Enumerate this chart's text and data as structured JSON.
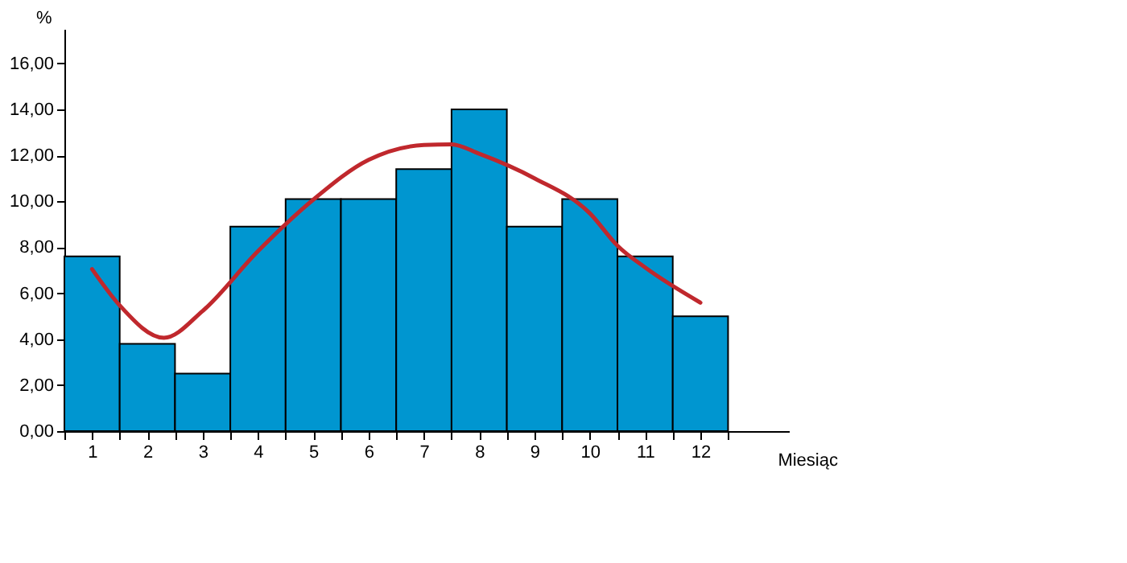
{
  "chart_data": {
    "type": "histogram",
    "xlabel": "Miesiąc",
    "ylabel": "%",
    "bins": [
      0.5,
      1.5,
      2.5,
      3.5,
      4.5,
      5.5,
      6.5,
      7.5,
      8.5,
      9.5,
      10.5,
      11.5,
      12.5
    ],
    "values": [
      7.6,
      3.8,
      2.5,
      8.9,
      10.1,
      10.1,
      11.4,
      14.0,
      8.9,
      10.1,
      7.6,
      5.0
    ],
    "color": "#0096d0",
    "series": [
      {
        "type": "line",
        "color": "#c0282d",
        "x": [
          1,
          1.5,
          2.3,
          3,
          4,
          5,
          6,
          7,
          7.5,
          8,
          9,
          10,
          10.5,
          11,
          12
        ],
        "values": [
          7.05,
          5.47,
          4.06,
          5.23,
          7.83,
          10.07,
          11.8,
          12.45,
          12.48,
          12.07,
          11.0,
          9.48,
          8.07,
          7.12,
          5.59
        ]
      }
    ],
    "xlim": [
      0.5,
      13.6
    ],
    "xticks": [
      {
        "value": 0.5,
        "label": null
      },
      {
        "value": 1,
        "label": "1"
      },
      {
        "value": 1.5,
        "label": null
      },
      {
        "value": 2,
        "label": "2"
      },
      {
        "value": 2.5,
        "label": null
      },
      {
        "value": 3,
        "label": "3"
      },
      {
        "value": 3.5,
        "label": null
      },
      {
        "value": 4,
        "label": "4"
      },
      {
        "value": 4.5,
        "label": null
      },
      {
        "value": 5,
        "label": "5"
      },
      {
        "value": 5.5,
        "label": null
      },
      {
        "value": 6,
        "label": "6"
      },
      {
        "value": 6.5,
        "label": null
      },
      {
        "value": 7,
        "label": "7"
      },
      {
        "value": 7.5,
        "label": null
      },
      {
        "value": 8,
        "label": "8"
      },
      {
        "value": 8.5,
        "label": null
      },
      {
        "value": 9,
        "label": "9"
      },
      {
        "value": 9.5,
        "label": null
      },
      {
        "value": 10,
        "label": "10"
      },
      {
        "value": 10.5,
        "label": null
      },
      {
        "value": 11,
        "label": "11"
      },
      {
        "value": 11.5,
        "label": null
      },
      {
        "value": 12,
        "label": "12"
      },
      {
        "value": 12.5,
        "label": null
      }
    ],
    "ylim": [
      0,
      17.5
    ],
    "yticks": [
      {
        "value": 0,
        "label": "0,00"
      },
      {
        "value": 2,
        "label": "2,00"
      },
      {
        "value": 4,
        "label": "4,00"
      },
      {
        "value": 6,
        "label": "6,00"
      },
      {
        "value": 8,
        "label": "8,00"
      },
      {
        "value": 10,
        "label": "10,00"
      },
      {
        "value": 12,
        "label": "12,00"
      },
      {
        "value": 14,
        "label": "14,00"
      },
      {
        "value": 16,
        "label": "16,00"
      }
    ],
    "grid": false,
    "legend": false
  }
}
